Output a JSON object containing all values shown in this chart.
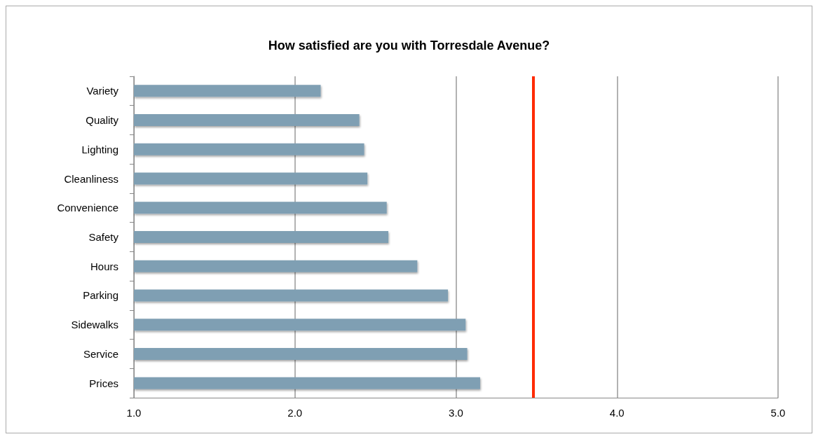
{
  "chart_data": {
    "type": "bar",
    "orientation": "horizontal",
    "title": "How satisfied are you with Torresdale Avenue?",
    "categories": [
      "Variety",
      "Quality",
      "Lighting",
      "Cleanliness",
      "Convenience",
      "Safety",
      "Hours",
      "Parking",
      "Sidewalks",
      "Service",
      "Prices"
    ],
    "values": [
      2.16,
      2.4,
      2.43,
      2.45,
      2.57,
      2.58,
      2.76,
      2.95,
      3.06,
      3.07,
      3.15
    ],
    "color": "#7f9fb3",
    "xlim": [
      1,
      5
    ],
    "xticks": [
      {
        "value": 1,
        "label": "1.0"
      },
      {
        "value": 2,
        "label": "2.0"
      },
      {
        "value": 3,
        "label": "3.0"
      },
      {
        "value": 4,
        "label": "4.0"
      },
      {
        "value": 5,
        "label": "5.0"
      }
    ],
    "grid": "x",
    "ref_lines": [
      {
        "axis": "x",
        "value": 3.48,
        "color": "#ff2a00"
      }
    ]
  }
}
